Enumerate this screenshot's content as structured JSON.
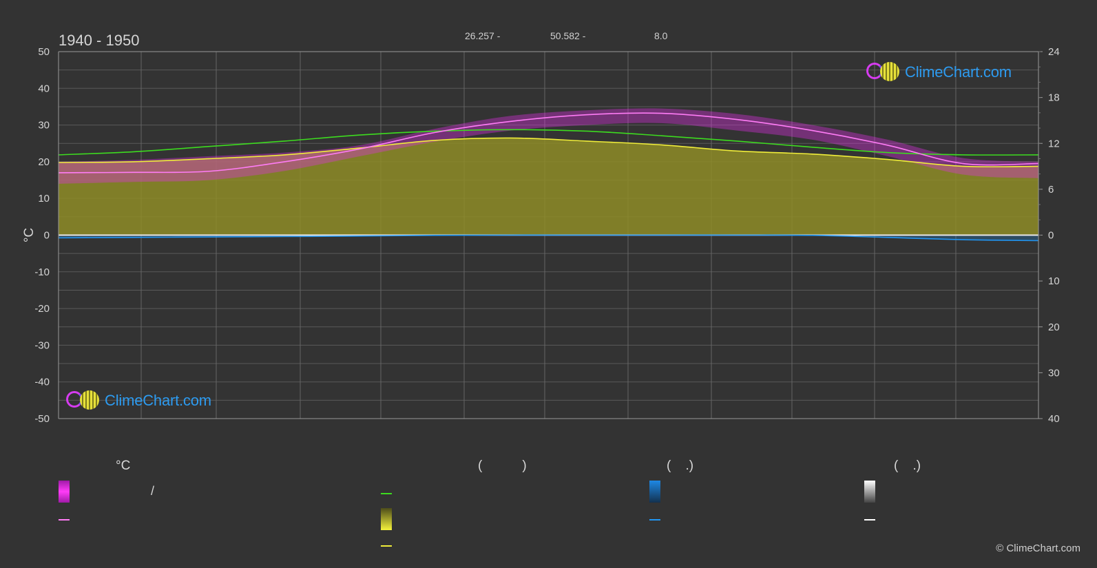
{
  "header": {
    "period": "1940 - 1950",
    "coord_1": "26.257 -",
    "coord_2": "50.582 -",
    "coord_3": "8.0"
  },
  "logo_text": "ClimeChart.com",
  "copyright": "© ClimeChart.com",
  "legend": {
    "col_temp_title": "°C",
    "col_sun_title": "(           )",
    "col_rain_title": "(    .)",
    "col_snow_title": "(    .)",
    "temp_range_separator": "/"
  },
  "colors": {
    "background": "#333333",
    "temp_range": "#e030e6",
    "mean_temp": "#ff7cf6",
    "daylight": "#3ddc1f",
    "sunshine_fill": "#8e8c27",
    "sunshine_line": "#f0ee3a",
    "rain": "#2196f3",
    "snow": "#ffffff"
  },
  "chart_data": {
    "type": "line",
    "title": "1940 - 1950",
    "ylabel": "°C",
    "y_left_range": [
      -50,
      50
    ],
    "y_left_ticks": [
      50,
      40,
      30,
      20,
      10,
      0,
      -10,
      -20,
      -30,
      -40,
      -50
    ],
    "y_right_top_ticks": [
      24,
      18,
      12,
      6,
      0
    ],
    "y_right_bottom_ticks": [
      10,
      20,
      30,
      40
    ],
    "y_right_top_range": [
      0,
      24
    ],
    "y_right_bottom_range": [
      0,
      40
    ],
    "x_months": 12,
    "grid": true,
    "series": [
      {
        "key": "mean_temp",
        "unit": "°C",
        "values": [
          17.0,
          17.1,
          17.4,
          20.0,
          23.5,
          28.0,
          31.0,
          32.8,
          33.2,
          31.5,
          28.5,
          24.5,
          19.5,
          19.5
        ]
      },
      {
        "key": "max_temp_band",
        "unit": "°C",
        "values": [
          20.0,
          20.5,
          21.5,
          22.5,
          24.5,
          29.0,
          32.5,
          34.0,
          34.5,
          33.0,
          30.0,
          26.0,
          21.0,
          20.0
        ]
      },
      {
        "key": "min_temp_band",
        "unit": "°C",
        "values": [
          14.0,
          14.5,
          15.0,
          17.5,
          21.5,
          25.5,
          28.5,
          30.0,
          30.5,
          28.5,
          26.0,
          21.5,
          16.5,
          15.5
        ]
      },
      {
        "key": "daylight",
        "unit": "h",
        "values": [
          10.5,
          10.9,
          11.6,
          12.3,
          13.1,
          13.6,
          13.8,
          13.6,
          13.0,
          12.3,
          11.5,
          10.8,
          10.5,
          10.5
        ]
      },
      {
        "key": "sunshine",
        "unit": "h",
        "values": [
          9.5,
          9.6,
          10.0,
          10.5,
          11.4,
          12.4,
          12.7,
          12.3,
          11.8,
          11.0,
          10.6,
          9.9,
          9.0,
          9.0
        ]
      },
      {
        "key": "rain",
        "unit": "mm",
        "values": [
          0.6,
          0.5,
          0.4,
          0.3,
          0.2,
          0.05,
          0.0,
          0.0,
          0.0,
          0.0,
          0.05,
          0.5,
          1.0,
          1.2
        ]
      }
    ]
  }
}
